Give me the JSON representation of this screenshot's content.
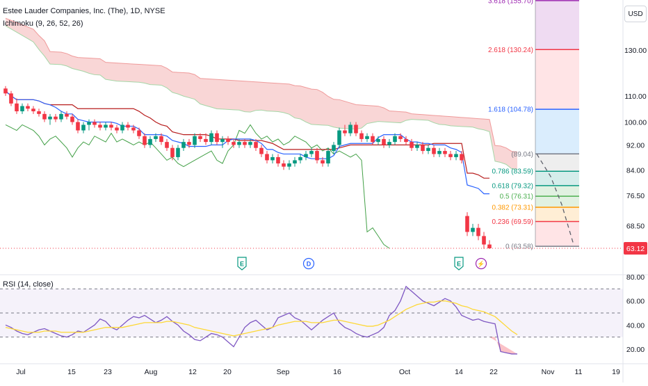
{
  "header": {
    "symbol_line": "Estee Lauder Companies, Inc. (The), 1D, NYSE",
    "indicator_line": "Ichimoku (9, 26, 52, 26)",
    "rsi_label": "RSI (14, close)",
    "currency_button": "USD"
  },
  "colors": {
    "up": "#089981",
    "down": "#f23645",
    "conversion": "#2962ff",
    "base": "#b71c1c",
    "lagging": "#43a047",
    "cloud_bear": "#f7c5c5",
    "cloud_bull": "#c8e6c9",
    "rsi": "#7e57c2",
    "rsi_ma": "#fdd835",
    "price_badge": "#f23645"
  },
  "chart_data": [
    {
      "type": "candlestick",
      "x_dates": [
        "Jul",
        "15",
        "23",
        "Aug",
        "12",
        "20",
        "Sep",
        "16",
        "Oct",
        "14",
        "22",
        "Nov",
        "11",
        "19"
      ],
      "price_axis_ticks": [
        "130.00",
        "110.00",
        "100.00",
        "92.00",
        "84.00",
        "76.50",
        "68.50"
      ],
      "last_price_label": "63.12",
      "last_price": 63.12,
      "ohlc": [
        [
          113,
          114,
          110,
          111
        ],
        [
          111,
          112,
          106,
          107
        ],
        [
          107,
          109,
          103,
          104
        ],
        [
          104,
          107,
          103,
          106
        ],
        [
          106,
          107,
          104,
          105
        ],
        [
          105,
          106,
          103,
          104
        ],
        [
          104,
          105,
          102,
          103
        ],
        [
          103,
          104,
          100,
          101
        ],
        [
          101,
          103,
          99,
          102
        ],
        [
          102,
          103,
          100,
          101
        ],
        [
          101,
          104,
          100,
          103
        ],
        [
          103,
          104,
          101,
          102
        ],
        [
          102,
          103,
          99,
          100
        ],
        [
          100,
          101,
          96,
          97
        ],
        [
          97,
          100,
          96,
          99
        ],
        [
          99,
          101,
          97,
          100
        ],
        [
          100,
          101,
          98,
          99
        ],
        [
          99,
          100,
          97,
          98
        ],
        [
          98,
          100,
          97,
          99
        ],
        [
          99,
          100,
          97,
          98
        ],
        [
          98,
          99,
          96,
          97
        ],
        [
          97,
          100,
          96,
          99
        ],
        [
          99,
          100,
          97,
          98
        ],
        [
          98,
          99,
          96,
          97
        ],
        [
          97,
          98,
          94,
          95
        ],
        [
          95,
          96,
          91,
          92
        ],
        [
          92,
          95,
          91,
          94
        ],
        [
          94,
          96,
          93,
          95
        ],
        [
          95,
          96,
          92,
          93
        ],
        [
          93,
          94,
          90,
          91
        ],
        [
          91,
          92,
          87,
          88
        ],
        [
          88,
          92,
          87,
          91
        ],
        [
          91,
          94,
          90,
          93
        ],
        [
          93,
          94,
          91,
          92
        ],
        [
          92,
          96,
          91,
          95
        ],
        [
          95,
          96,
          93,
          94
        ],
        [
          94,
          96,
          92,
          93
        ],
        [
          93,
          97,
          92,
          96
        ],
        [
          96,
          97,
          92,
          93
        ],
        [
          93,
          95,
          91,
          94
        ],
        [
          94,
          95,
          92,
          93
        ],
        [
          93,
          94,
          91,
          92
        ],
        [
          92,
          94,
          91,
          93
        ],
        [
          93,
          94,
          91,
          92
        ],
        [
          92,
          94,
          91,
          93
        ],
        [
          93,
          94,
          90,
          91
        ],
        [
          91,
          92,
          88,
          89
        ],
        [
          89,
          90,
          86,
          87
        ],
        [
          87,
          89,
          86,
          88
        ],
        [
          88,
          89,
          85,
          86
        ],
        [
          86,
          87,
          84,
          85
        ],
        [
          85,
          87,
          84,
          86
        ],
        [
          86,
          88,
          85,
          87
        ],
        [
          87,
          89,
          86,
          88
        ],
        [
          88,
          90,
          87,
          89
        ],
        [
          89,
          91,
          88,
          90
        ],
        [
          90,
          91,
          86,
          87
        ],
        [
          87,
          88,
          85,
          86
        ],
        [
          86,
          91,
          85,
          90
        ],
        [
          90,
          93,
          89,
          92
        ],
        [
          92,
          98,
          91,
          97
        ],
        [
          97,
          99,
          95,
          96
        ],
        [
          96,
          100,
          95,
          99
        ],
        [
          99,
          100,
          95,
          96
        ],
        [
          96,
          97,
          93,
          94
        ],
        [
          94,
          96,
          93,
          95
        ],
        [
          95,
          96,
          92,
          93
        ],
        [
          93,
          95,
          92,
          94
        ],
        [
          94,
          95,
          91,
          92
        ],
        [
          92,
          94,
          91,
          93
        ],
        [
          93,
          96,
          92,
          95
        ],
        [
          95,
          96,
          93,
          94
        ],
        [
          94,
          95,
          92,
          93
        ],
        [
          93,
          94,
          90,
          91
        ],
        [
          91,
          93,
          90,
          92
        ],
        [
          92,
          93,
          89,
          90
        ],
        [
          90,
          92,
          89,
          91
        ],
        [
          91,
          92,
          88,
          89
        ],
        [
          89,
          91,
          88,
          90
        ],
        [
          90,
          91,
          88,
          89
        ],
        [
          89,
          90,
          87,
          88
        ],
        [
          88,
          90,
          87,
          89
        ],
        [
          89,
          90,
          86,
          87
        ],
        [
          71,
          72,
          66,
          67
        ],
        [
          67,
          69,
          66,
          68
        ],
        [
          68,
          69,
          65,
          66
        ],
        [
          66,
          67,
          63,
          64
        ],
        [
          64,
          65,
          63,
          63.12
        ]
      ]
    },
    {
      "type": "fibonacci",
      "levels": [
        {
          "ratio": "3.618",
          "price": 155.7,
          "label": "3.618 (155.70)",
          "color": "#9c27b0"
        },
        {
          "ratio": "2.618",
          "price": 130.24,
          "label": "2.618 (130.24)",
          "color": "#f23645"
        },
        {
          "ratio": "1.618",
          "price": 104.78,
          "label": "1.618 (104.78)",
          "color": "#2962ff"
        },
        {
          "ratio": "1",
          "price": 89.04,
          "label": "(89.04)",
          "color": "#787b86"
        },
        {
          "ratio": "0.786",
          "price": 83.59,
          "label": "0.786 (83.59)",
          "color": "#089981"
        },
        {
          "ratio": "0.618",
          "price": 79.32,
          "label": "0.618 (79.32)",
          "color": "#089981"
        },
        {
          "ratio": "0.5",
          "price": 76.31,
          "label": "0.5 (76.31)",
          "color": "#4caf50"
        },
        {
          "ratio": "0.382",
          "price": 73.31,
          "label": "0.382 (73.31)",
          "color": "#ff9800"
        },
        {
          "ratio": "0.236",
          "price": 69.59,
          "label": "0.236 (69.59)",
          "color": "#f23645"
        },
        {
          "ratio": "0",
          "price": 63.58,
          "label": "0 (63.58)",
          "color": "#787b86"
        }
      ]
    },
    {
      "type": "line",
      "name": "RSI (14, close)",
      "y_axis_ticks": [
        "80.00",
        "60.00",
        "40.00",
        "20.00"
      ],
      "bands": [
        70,
        50,
        30
      ],
      "values": [
        40,
        38,
        35,
        33,
        32,
        34,
        36,
        37,
        35,
        33,
        31,
        30,
        32,
        35,
        34,
        37,
        40,
        45,
        43,
        38,
        36,
        40,
        44,
        47,
        46,
        48,
        45,
        42,
        44,
        47,
        43,
        40,
        35,
        32,
        28,
        27,
        30,
        33,
        32,
        30,
        26,
        22,
        30,
        38,
        42,
        44,
        40,
        36,
        38,
        46,
        48,
        50,
        46,
        44,
        40,
        36,
        40,
        44,
        47,
        50,
        42,
        38,
        36,
        33,
        31,
        30,
        32,
        34,
        38,
        48,
        52,
        60,
        72,
        68,
        64,
        60,
        58,
        56,
        59,
        62,
        60,
        55,
        48,
        46,
        44,
        45,
        43,
        42,
        41,
        18,
        17,
        16,
        16
      ],
      "ma_values": [
        38,
        37,
        36,
        35,
        34,
        34,
        34,
        35,
        35,
        35,
        34,
        34,
        34,
        34,
        34,
        35,
        36,
        37,
        38,
        38,
        38,
        38,
        39,
        40,
        41,
        42,
        42,
        42,
        42,
        43,
        43,
        42,
        41,
        40,
        38,
        37,
        36,
        35,
        34,
        33,
        32,
        31,
        32,
        33,
        34,
        35,
        36,
        37,
        38,
        40,
        41,
        42,
        43,
        43,
        43,
        42,
        42,
        42,
        43,
        44,
        44,
        43,
        42,
        41,
        40,
        39,
        39,
        40,
        42,
        44,
        47,
        50,
        53,
        55,
        57,
        58,
        59,
        59,
        60,
        60,
        59,
        58,
        56,
        55,
        53,
        52,
        51,
        49,
        47,
        43,
        39,
        35,
        32
      ]
    }
  ],
  "x_labels": [
    "Jul",
    "15",
    "23",
    "Aug",
    "12",
    "20",
    "Sep",
    "16",
    "Oct",
    "14",
    "22",
    "Nov",
    "11",
    "19"
  ],
  "event_markers": [
    {
      "kind": "E",
      "color": "#089981",
      "bar": 43
    },
    {
      "kind": "D",
      "color": "#2962ff",
      "bar": 55
    },
    {
      "kind": "E",
      "color": "#089981",
      "bar": 82
    },
    {
      "kind": "⚡",
      "color": "#9c27b0",
      "bar": 86
    }
  ]
}
